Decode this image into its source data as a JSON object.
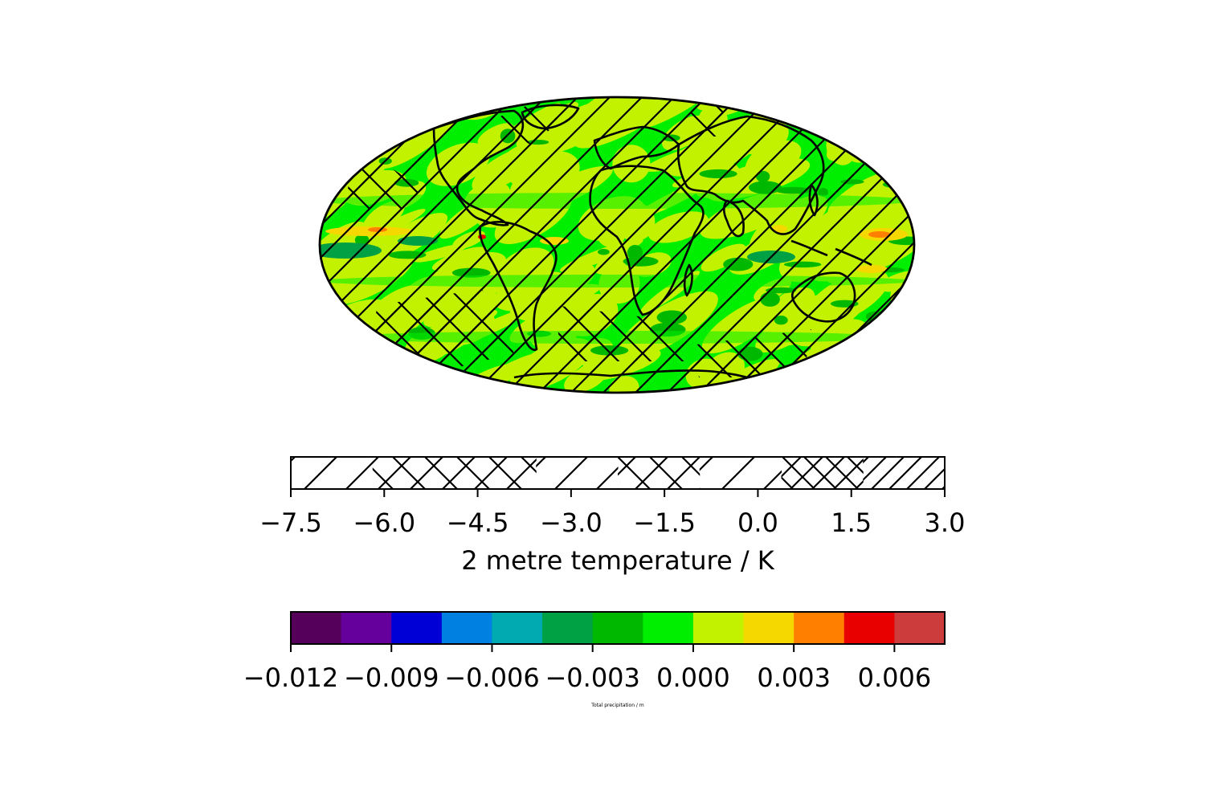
{
  "chart_data": [
    {
      "type": "heatmap",
      "map": {
        "projection": "mollweide",
        "filled_field_levels": [
          -0.012,
          -0.0105,
          -0.009,
          -0.0075,
          -0.006,
          -0.0045,
          -0.003,
          -0.0015,
          0.0,
          0.0015,
          0.003,
          0.0045,
          0.006,
          0.0075
        ],
        "dominant_bands": [
          -0.0015,
          0.0
        ],
        "hatched_field_levels": [
          -7.5,
          -6.0,
          -4.5,
          -3.0,
          -1.5,
          0.0,
          1.5,
          3.0
        ],
        "coastlines": true
      },
      "colorbars": [
        {
          "kind": "hatching",
          "label": "2 metre temperature / K",
          "range": [
            -7.5,
            3.0
          ],
          "tick_values": [
            -7.5,
            -6.0,
            -4.5,
            -3.0,
            -1.5,
            0.0,
            1.5,
            3.0
          ],
          "tick_labels": [
            "−7.5",
            "−6.0",
            "−4.5",
            "−3.0",
            "−1.5",
            "0.0",
            "1.5",
            "3.0"
          ],
          "hatch_patterns": [
            "/",
            "x",
            "x",
            "/",
            "x",
            "/",
            "xx",
            "//"
          ]
        },
        {
          "kind": "color",
          "label": "Total precipitation / m",
          "range": [
            -0.012,
            0.0075
          ],
          "tick_values": [
            -0.012,
            -0.009,
            -0.006,
            -0.003,
            0.0,
            0.003,
            0.006
          ],
          "tick_labels": [
            "−0.012",
            "−0.009",
            "−0.006",
            "−0.003",
            "0.000",
            "0.003",
            "0.006"
          ],
          "colors": [
            "#55005a",
            "#66009c",
            "#0000d6",
            "#0080e0",
            "#00aab0",
            "#00a045",
            "#00b800",
            "#00ee00",
            "#c2f200",
            "#f5d800",
            "#ff8000",
            "#e80000",
            "#cc3c3c"
          ]
        }
      ]
    }
  ]
}
